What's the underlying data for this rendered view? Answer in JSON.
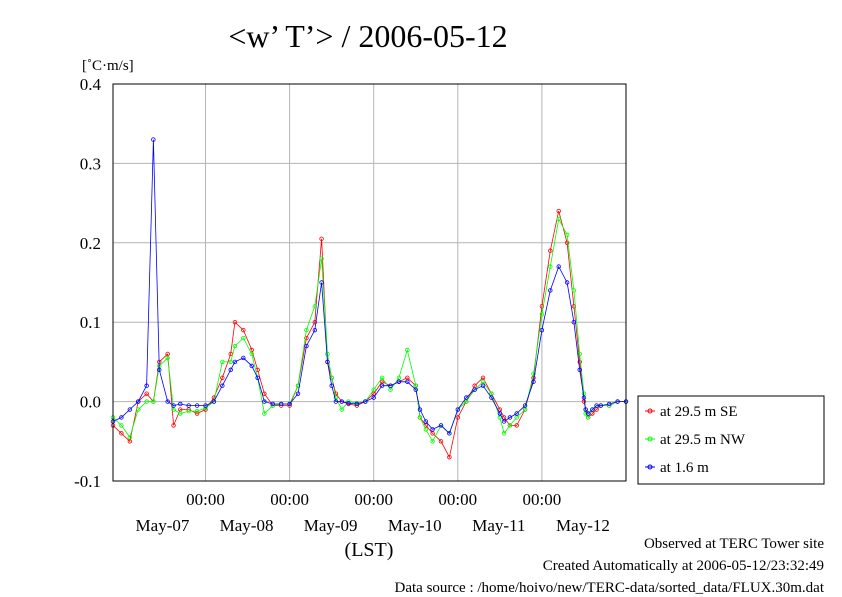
{
  "chart_data": {
    "type": "line",
    "title": "<w’ T’> / 2006-05-12",
    "ylabel": "[˚C·m/s]",
    "xlabel": "(LST)",
    "ylim": [
      -0.1,
      0.4
    ],
    "yticks": [
      "0.4",
      "0.3",
      "0.2",
      "0.1",
      "0.0",
      "-0.1"
    ],
    "y_tick_values": [
      0.4,
      0.3,
      0.2,
      0.1,
      0.0,
      -0.1
    ],
    "x_range_days": [
      -0.1,
      6.0
    ],
    "x_time_labels": [
      "00:00",
      "00:00",
      "00:00",
      "00:00",
      "00:00"
    ],
    "x_time_positions": [
      1,
      2,
      3,
      4,
      5
    ],
    "x_day_labels": [
      "May-07",
      "May-08",
      "May-09",
      "May-10",
      "May-11",
      "May-12"
    ],
    "x_day_positions": [
      0.5,
      1.5,
      2.5,
      3.5,
      4.5,
      5.5
    ],
    "grid": true,
    "legend_position": "right",
    "series": [
      {
        "name": "at 29.5 m SE",
        "color": "#ff0000",
        "x": [
          -0.1,
          0.0,
          0.1,
          0.2,
          0.3,
          0.38,
          0.45,
          0.55,
          0.62,
          0.7,
          0.8,
          0.9,
          1.0,
          1.1,
          1.2,
          1.3,
          1.35,
          1.45,
          1.55,
          1.62,
          1.7,
          1.8,
          1.9,
          2.0,
          2.1,
          2.2,
          2.3,
          2.38,
          2.45,
          2.5,
          2.55,
          2.62,
          2.7,
          2.8,
          2.9,
          3.0,
          3.1,
          3.2,
          3.3,
          3.4,
          3.5,
          3.55,
          3.62,
          3.7,
          3.8,
          3.9,
          4.0,
          4.1,
          4.2,
          4.3,
          4.4,
          4.5,
          4.55,
          4.62,
          4.7,
          4.8,
          4.9,
          5.0,
          5.1,
          5.2,
          5.3,
          5.38,
          5.45,
          5.5,
          5.52,
          5.55,
          5.6,
          5.65,
          5.7,
          5.8,
          5.9,
          6.0
        ],
        "values": [
          -0.03,
          -0.04,
          -0.05,
          0.0,
          0.01,
          0.0,
          0.05,
          0.06,
          -0.03,
          -0.01,
          -0.01,
          -0.015,
          -0.01,
          0.005,
          0.03,
          0.06,
          0.1,
          0.09,
          0.065,
          0.04,
          0.01,
          -0.005,
          -0.005,
          -0.005,
          0.02,
          0.08,
          0.1,
          0.205,
          0.05,
          0.03,
          0.01,
          0.0,
          -0.003,
          -0.005,
          0.0,
          0.01,
          0.025,
          0.02,
          0.025,
          0.03,
          0.02,
          -0.02,
          -0.03,
          -0.04,
          -0.05,
          -0.07,
          -0.02,
          0.0,
          0.02,
          0.03,
          0.01,
          -0.01,
          -0.02,
          -0.03,
          -0.03,
          -0.01,
          0.03,
          0.12,
          0.19,
          0.24,
          0.2,
          0.12,
          0.05,
          0.0,
          -0.01,
          -0.02,
          -0.015,
          -0.01,
          -0.005,
          -0.005,
          0.0,
          0.0
        ]
      },
      {
        "name": "at 29.5 m NW",
        "color": "#00ff00",
        "x": [
          -0.1,
          0.0,
          0.1,
          0.2,
          0.3,
          0.38,
          0.45,
          0.55,
          0.62,
          0.7,
          0.8,
          0.9,
          1.0,
          1.1,
          1.2,
          1.3,
          1.35,
          1.45,
          1.55,
          1.62,
          1.7,
          1.8,
          1.9,
          2.0,
          2.1,
          2.2,
          2.3,
          2.38,
          2.45,
          2.5,
          2.55,
          2.62,
          2.7,
          2.8,
          2.9,
          3.0,
          3.1,
          3.2,
          3.3,
          3.4,
          3.5,
          3.55,
          3.62,
          3.7,
          3.8,
          3.9,
          4.0,
          4.1,
          4.2,
          4.3,
          4.4,
          4.5,
          4.55,
          4.62,
          4.7,
          4.8,
          4.9,
          5.0,
          5.1,
          5.2,
          5.3,
          5.38,
          5.45,
          5.5,
          5.52,
          5.55,
          5.6,
          5.65,
          5.7,
          5.8,
          5.9,
          6.0
        ],
        "values": [
          -0.02,
          -0.03,
          -0.045,
          -0.01,
          0.0,
          0.0,
          0.045,
          0.055,
          -0.01,
          -0.015,
          -0.012,
          -0.012,
          -0.008,
          0.0,
          0.05,
          0.05,
          0.07,
          0.08,
          0.06,
          0.03,
          -0.015,
          -0.005,
          -0.003,
          -0.003,
          0.02,
          0.09,
          0.12,
          0.18,
          0.06,
          0.03,
          0.005,
          -0.01,
          0.0,
          -0.002,
          0.0,
          0.015,
          0.03,
          0.015,
          0.03,
          0.065,
          0.02,
          -0.02,
          -0.035,
          -0.05,
          -0.03,
          -0.04,
          -0.01,
          0.0,
          0.015,
          0.025,
          0.01,
          -0.02,
          -0.04,
          -0.03,
          -0.02,
          -0.01,
          0.035,
          0.11,
          0.17,
          0.23,
          0.21,
          0.14,
          0.06,
          0.01,
          -0.015,
          -0.02,
          -0.01,
          -0.005,
          -0.005,
          -0.005,
          0.0,
          0.0
        ]
      },
      {
        "name": "at 1.6 m",
        "color": "#0000ff",
        "x": [
          -0.1,
          0.0,
          0.1,
          0.2,
          0.3,
          0.38,
          0.45,
          0.55,
          0.62,
          0.7,
          0.8,
          0.9,
          1.0,
          1.1,
          1.2,
          1.3,
          1.35,
          1.45,
          1.55,
          1.62,
          1.7,
          1.8,
          1.9,
          2.0,
          2.1,
          2.2,
          2.3,
          2.38,
          2.45,
          2.5,
          2.55,
          2.62,
          2.7,
          2.8,
          2.9,
          3.0,
          3.1,
          3.2,
          3.3,
          3.4,
          3.5,
          3.55,
          3.62,
          3.7,
          3.8,
          3.9,
          4.0,
          4.1,
          4.2,
          4.3,
          4.4,
          4.5,
          4.55,
          4.62,
          4.7,
          4.8,
          4.9,
          5.0,
          5.1,
          5.2,
          5.3,
          5.38,
          5.45,
          5.5,
          5.52,
          5.55,
          5.6,
          5.65,
          5.7,
          5.8,
          5.9,
          6.0
        ],
        "values": [
          -0.025,
          -0.02,
          -0.01,
          0.0,
          0.02,
          0.33,
          0.04,
          0.0,
          -0.005,
          -0.003,
          -0.005,
          -0.005,
          -0.005,
          0.0,
          0.02,
          0.04,
          0.05,
          0.055,
          0.045,
          0.03,
          0.0,
          -0.003,
          -0.003,
          -0.003,
          0.01,
          0.07,
          0.09,
          0.15,
          0.05,
          0.02,
          0.0,
          0.0,
          -0.002,
          -0.003,
          0.0,
          0.005,
          0.02,
          0.02,
          0.025,
          0.025,
          0.015,
          -0.01,
          -0.025,
          -0.035,
          -0.03,
          -0.04,
          -0.01,
          0.005,
          0.015,
          0.02,
          0.005,
          -0.015,
          -0.025,
          -0.02,
          -0.015,
          -0.005,
          0.025,
          0.09,
          0.14,
          0.17,
          0.15,
          0.1,
          0.04,
          0.005,
          -0.01,
          -0.015,
          -0.01,
          -0.005,
          -0.005,
          -0.003,
          0.0,
          0.0
        ]
      }
    ]
  },
  "footer": {
    "site": "Observed at TERC Tower site",
    "created": "Created Automatically at 2006-05-12/23:32:49",
    "source": "Data source : /home/hoivo/new/TERC-data/sorted_data/FLUX.30m.dat"
  }
}
